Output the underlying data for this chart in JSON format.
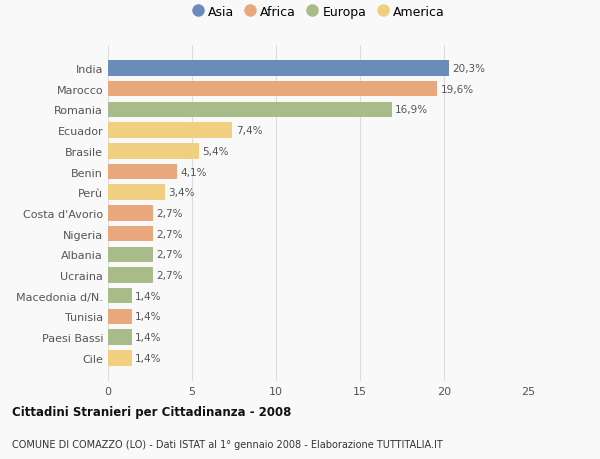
{
  "categories": [
    "India",
    "Marocco",
    "Romania",
    "Ecuador",
    "Brasile",
    "Benin",
    "Perù",
    "Costa d'Avorio",
    "Nigeria",
    "Albania",
    "Ucraina",
    "Macedonia d/N.",
    "Tunisia",
    "Paesi Bassi",
    "Cile"
  ],
  "values": [
    20.3,
    19.6,
    16.9,
    7.4,
    5.4,
    4.1,
    3.4,
    2.7,
    2.7,
    2.7,
    2.7,
    1.4,
    1.4,
    1.4,
    1.4
  ],
  "continents": [
    "Asia",
    "Africa",
    "Europa",
    "America",
    "America",
    "Africa",
    "America",
    "Africa",
    "Africa",
    "Europa",
    "Europa",
    "Europa",
    "Africa",
    "Europa",
    "America"
  ],
  "continent_colors": {
    "Asia": "#6b8cba",
    "Africa": "#e8a87c",
    "Europa": "#a8bc8a",
    "America": "#f0d080"
  },
  "legend_order": [
    "Asia",
    "Africa",
    "Europa",
    "America"
  ],
  "title1": "Cittadini Stranieri per Cittadinanza - 2008",
  "title2": "COMUNE DI COMAZZO (LO) - Dati ISTAT al 1° gennaio 2008 - Elaborazione TUTTITALIA.IT",
  "xlim": [
    0,
    25
  ],
  "xticks": [
    0,
    5,
    10,
    15,
    20,
    25
  ],
  "background_color": "#f9f9f9",
  "bar_height": 0.75,
  "grid_color": "#dddddd"
}
